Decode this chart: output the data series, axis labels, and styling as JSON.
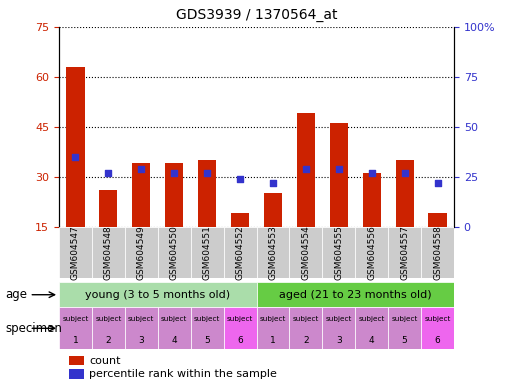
{
  "title": "GDS3939 / 1370564_at",
  "samples": [
    "GSM604547",
    "GSM604548",
    "GSM604549",
    "GSM604550",
    "GSM604551",
    "GSM604552",
    "GSM604553",
    "GSM604554",
    "GSM604555",
    "GSM604556",
    "GSM604557",
    "GSM604558"
  ],
  "counts": [
    63,
    26,
    34,
    34,
    35,
    19,
    25,
    49,
    46,
    31,
    35,
    19
  ],
  "percentile_ranks": [
    35,
    27,
    29,
    27,
    27,
    24,
    22,
    29,
    29,
    27,
    27,
    22
  ],
  "ylim_left": [
    15,
    75
  ],
  "ylim_right": [
    0,
    100
  ],
  "yticks_left": [
    15,
    30,
    45,
    60,
    75
  ],
  "yticks_right": [
    0,
    25,
    50,
    75,
    100
  ],
  "ytick_labels_right": [
    "0",
    "25",
    "50",
    "75",
    "100%"
  ],
  "bar_color": "#cc2200",
  "dot_color": "#3333cc",
  "bar_width": 0.55,
  "young_label": "young (3 to 5 months old)",
  "aged_label": "aged (21 to 23 months old)",
  "young_color": "#99ee88",
  "aged_color": "#55cc33",
  "age_row_color_young": "#aaddaa",
  "age_row_color_aged": "#66cc44",
  "specimen_row_color": "#cc88cc",
  "specimen_row_color_alt": "#ee66ee",
  "legend_count_label": "count",
  "legend_pct_label": "percentile rank within the sample",
  "xlabel_age": "age",
  "xlabel_specimen": "specimen",
  "background_color": "#ffffff",
  "tick_color_left": "#cc2200",
  "tick_color_right": "#3333cc",
  "xtick_bg_color": "#cccccc",
  "spec_colors": [
    "#cc88cc",
    "#cc88cc",
    "#cc88cc",
    "#cc88cc",
    "#cc88cc",
    "#ee66ee",
    "#cc88cc",
    "#cc88cc",
    "#cc88cc",
    "#cc88cc",
    "#cc88cc",
    "#ee66ee"
  ]
}
